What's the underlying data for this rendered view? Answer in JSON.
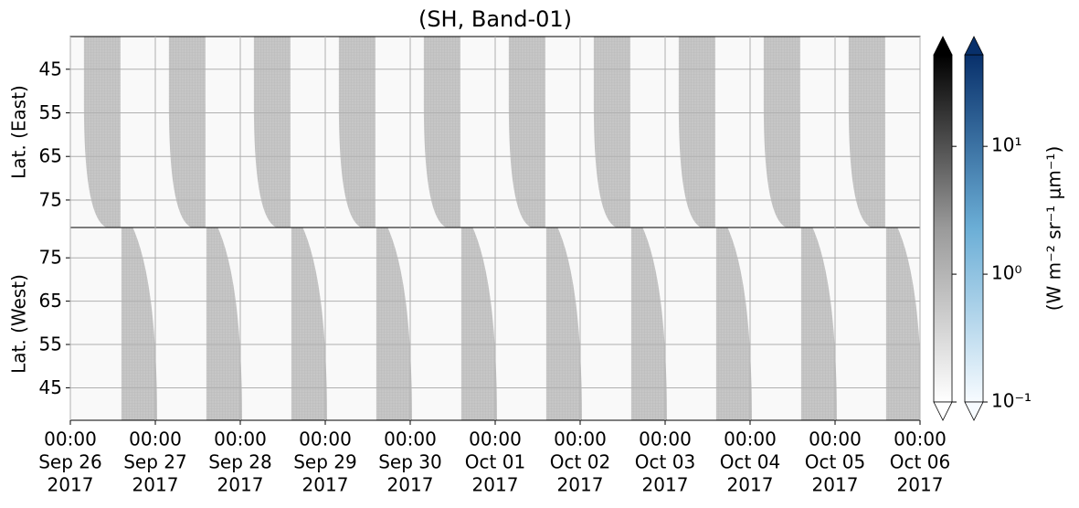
{
  "chart_data": {
    "type": "swath",
    "title": "(SH, Band-01)",
    "xlim": [
      "2017-09-26T00:00",
      "2017-10-06T00:00"
    ],
    "xticks": [
      {
        "value": "2017-09-26T00:00",
        "label": [
          "00:00",
          "Sep 26",
          "2017"
        ]
      },
      {
        "value": "2017-09-27T00:00",
        "label": [
          "00:00",
          "Sep 27",
          "2017"
        ]
      },
      {
        "value": "2017-09-28T00:00",
        "label": [
          "00:00",
          "Sep 28",
          "2017"
        ]
      },
      {
        "value": "2017-09-29T00:00",
        "label": [
          "00:00",
          "Sep 29",
          "2017"
        ]
      },
      {
        "value": "2017-09-30T00:00",
        "label": [
          "00:00",
          "Sep 30",
          "2017"
        ]
      },
      {
        "value": "2017-10-01T00:00",
        "label": [
          "00:00",
          "Oct 01",
          "2017"
        ]
      },
      {
        "value": "2017-10-02T00:00",
        "label": [
          "00:00",
          "Oct 02",
          "2017"
        ]
      },
      {
        "value": "2017-10-03T00:00",
        "label": [
          "00:00",
          "Oct 03",
          "2017"
        ]
      },
      {
        "value": "2017-10-04T00:00",
        "label": [
          "00:00",
          "Oct 04",
          "2017"
        ]
      },
      {
        "value": "2017-10-05T00:00",
        "label": [
          "00:00",
          "Oct 05",
          "2017"
        ]
      },
      {
        "value": "2017-10-06T00:00",
        "label": [
          "00:00",
          "Oct 06",
          "2017"
        ]
      }
    ],
    "grid": true,
    "swath_color": "#c6c6c6",
    "panels": [
      {
        "ylabel": "Lat. (East)",
        "ylim": [
          37.5,
          81.3
        ],
        "yinverted": true,
        "yticks": [
          45,
          55,
          65,
          75
        ],
        "swaths": [
          [
            "2017-09-26T03:50",
            "2017-09-26T14:10"
          ],
          [
            "2017-09-27T03:50",
            "2017-09-27T14:10"
          ],
          [
            "2017-09-28T03:50",
            "2017-09-28T14:10"
          ],
          [
            "2017-09-29T03:50",
            "2017-09-29T14:10"
          ],
          [
            "2017-09-30T03:50",
            "2017-09-30T14:10"
          ],
          [
            "2017-10-01T03:50",
            "2017-10-01T14:10"
          ],
          [
            "2017-10-02T03:50",
            "2017-10-02T14:10"
          ],
          [
            "2017-10-03T03:50",
            "2017-10-03T14:10"
          ],
          [
            "2017-10-04T03:50",
            "2017-10-04T14:10"
          ],
          [
            "2017-10-05T03:50",
            "2017-10-05T14:10"
          ]
        ]
      },
      {
        "ylabel": "Lat. (West)",
        "ylim": [
          37.5,
          82
        ],
        "yinverted": false,
        "yticks": [
          45,
          55,
          65,
          75
        ],
        "swaths": [
          [
            "2017-09-26T14:25",
            "2017-09-27T00:30"
          ],
          [
            "2017-09-27T14:25",
            "2017-09-28T00:30"
          ],
          [
            "2017-09-28T14:25",
            "2017-09-29T00:30"
          ],
          [
            "2017-09-29T14:25",
            "2017-09-30T00:30"
          ],
          [
            "2017-09-30T14:25",
            "2017-10-01T00:30"
          ],
          [
            "2017-10-01T14:25",
            "2017-10-02T00:30"
          ],
          [
            "2017-10-02T14:25",
            "2017-10-03T00:30"
          ],
          [
            "2017-10-03T14:25",
            "2017-10-04T00:30"
          ],
          [
            "2017-10-04T14:25",
            "2017-10-05T00:30"
          ],
          [
            "2017-10-05T14:25",
            "2017-10-06T00:30"
          ]
        ]
      }
    ],
    "log": true,
    "clim": [
      0.1,
      52
    ],
    "cticks": [
      {
        "value": 0.1,
        "label": "10⁻¹"
      },
      {
        "value": 1,
        "label": "10⁰"
      },
      {
        "value": 10,
        "label": "10¹"
      }
    ],
    "clabel": "(W m⁻² sr⁻¹ μm⁻¹)",
    "colorbars": [
      {
        "colors": [
          "#ffffff",
          "#9a9a9a",
          "#000000"
        ]
      },
      {
        "colors": [
          "#f7fbff",
          "#6baed6",
          "#08306b"
        ]
      }
    ]
  }
}
